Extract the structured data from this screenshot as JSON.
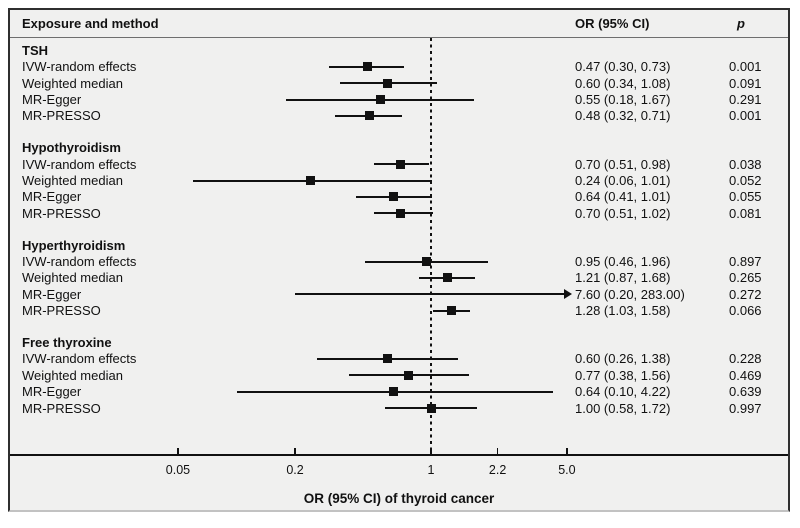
{
  "figure": {
    "header": {
      "exposure_col": "Exposure and method",
      "or_col": "OR (95% CI)",
      "p_col": "p"
    },
    "xlabel": "OR (95% CI) of thyroid cancer"
  },
  "chart_data": {
    "type": "forest",
    "x_scale": "log",
    "ref_line": 1,
    "x_ticks": [
      0.05,
      0.2,
      1,
      2.2,
      5.0
    ],
    "x_tick_labels": [
      "0.05",
      "0.2",
      "1",
      "2.2",
      "5.0"
    ],
    "columns": [
      "Exposure and method",
      "OR (95% CI)",
      "p"
    ],
    "xlabel": "OR (95% CI) of thyroid cancer",
    "sections": [
      {
        "label": "TSH",
        "rows": [
          {
            "method": "IVW-random effects",
            "or": 0.47,
            "lo": 0.3,
            "hi": 0.73,
            "or_ci": "0.47 (0.30, 0.73)",
            "p": "0.001"
          },
          {
            "method": "Weighted median",
            "or": 0.6,
            "lo": 0.34,
            "hi": 1.08,
            "or_ci": "0.60 (0.34, 1.08)",
            "p": "0.091"
          },
          {
            "method": "MR-Egger",
            "or": 0.55,
            "lo": 0.18,
            "hi": 1.67,
            "or_ci": "0.55 (0.18, 1.67)",
            "p": "0.291"
          },
          {
            "method": "MR-PRESSO",
            "or": 0.48,
            "lo": 0.32,
            "hi": 0.71,
            "or_ci": "0.48 (0.32, 0.71)",
            "p": "0.001"
          }
        ]
      },
      {
        "label": "Hypothyroidism",
        "rows": [
          {
            "method": "IVW-random effects",
            "or": 0.7,
            "lo": 0.51,
            "hi": 0.98,
            "or_ci": "0.70 (0.51, 0.98)",
            "p": "0.038"
          },
          {
            "method": "Weighted median",
            "or": 0.24,
            "lo": 0.06,
            "hi": 1.01,
            "or_ci": "0.24 (0.06, 1.01)",
            "p": "0.052"
          },
          {
            "method": "MR-Egger",
            "or": 0.64,
            "lo": 0.41,
            "hi": 1.01,
            "or_ci": "0.64 (0.41, 1.01)",
            "p": "0.055"
          },
          {
            "method": "MR-PRESSO",
            "or": 0.7,
            "lo": 0.51,
            "hi": 1.02,
            "or_ci": "0.70 (0.51, 1.02)",
            "p": "0.081"
          }
        ]
      },
      {
        "label": "Hyperthyroidism",
        "rows": [
          {
            "method": "IVW-random effects",
            "or": 0.95,
            "lo": 0.46,
            "hi": 1.96,
            "or_ci": "0.95 (0.46, 1.96)",
            "p": "0.897"
          },
          {
            "method": "Weighted median",
            "or": 1.21,
            "lo": 0.87,
            "hi": 1.68,
            "or_ci": "1.21 (0.87, 1.68)",
            "p": "0.265"
          },
          {
            "method": "MR-Egger",
            "or": 7.6,
            "lo": 0.2,
            "hi": 283.0,
            "or_ci": "7.60 (0.20, 283.00)",
            "p": "0.272",
            "ci_arrow_right": true
          },
          {
            "method": "MR-PRESSO",
            "or": 1.28,
            "lo": 1.03,
            "hi": 1.58,
            "or_ci": "1.28 (1.03, 1.58)",
            "p": "0.066"
          }
        ]
      },
      {
        "label": "Free thyroxine",
        "rows": [
          {
            "method": "IVW-random effects",
            "or": 0.6,
            "lo": 0.26,
            "hi": 1.38,
            "or_ci": "0.60 (0.26, 1.38)",
            "p": "0.228"
          },
          {
            "method": "Weighted median",
            "or": 0.77,
            "lo": 0.38,
            "hi": 1.56,
            "or_ci": "0.77 (0.38, 1.56)",
            "p": "0.469"
          },
          {
            "method": "MR-Egger",
            "or": 0.64,
            "lo": 0.1,
            "hi": 4.22,
            "or_ci": "0.64 (0.10, 4.22)",
            "p": "0.639"
          },
          {
            "method": "MR-PRESSO",
            "or": 1.0,
            "lo": 0.58,
            "hi": 1.72,
            "or_ci": "1.00 (0.58, 1.72)",
            "p": "0.997"
          }
        ]
      }
    ]
  }
}
